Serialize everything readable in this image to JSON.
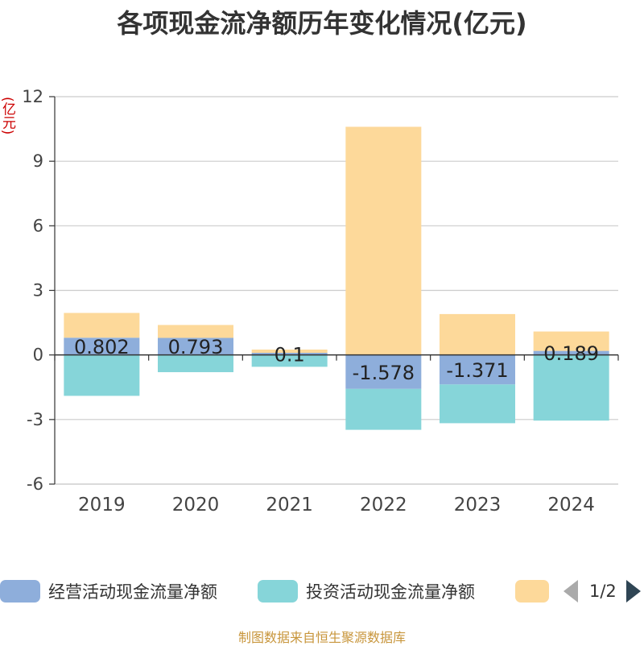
{
  "title": "各项现金流净额历年变化情况(亿元)",
  "unit_label": "(亿元)",
  "colors": {
    "operating": "#8eaedb",
    "investing": "#86d5d9",
    "financing": "#fdd99a"
  },
  "legend": {
    "items": [
      "经营活动现金流量净额",
      "投资活动现金流量净额"
    ],
    "page_text": "1/2"
  },
  "footer": "制图数据来自恒生聚源数据库",
  "chart_data": {
    "type": "bar",
    "stacked": true,
    "categories": [
      "2019",
      "2020",
      "2021",
      "2022",
      "2023",
      "2024"
    ],
    "ylim": [
      -6,
      12
    ],
    "yticks": [
      -6,
      -3,
      0,
      3,
      6,
      9,
      12
    ],
    "grid": true,
    "legend_position": "bottom",
    "series": [
      {
        "name": "经营活动现金流量净额",
        "values": [
          0.802,
          0.793,
          0.1,
          -1.578,
          -1.371,
          0.189
        ]
      },
      {
        "name": "投资活动现金流量净额",
        "values": [
          -1.9,
          -0.8,
          -0.55,
          -1.9,
          -1.8,
          -3.05
        ]
      },
      {
        "values": [
          1.15,
          0.6,
          0.15,
          10.6,
          1.9,
          0.9
        ]
      }
    ],
    "data_labels": [
      "0.802",
      "0.793",
      "0.1",
      "-1.578",
      "-1.371",
      "0.189"
    ]
  }
}
